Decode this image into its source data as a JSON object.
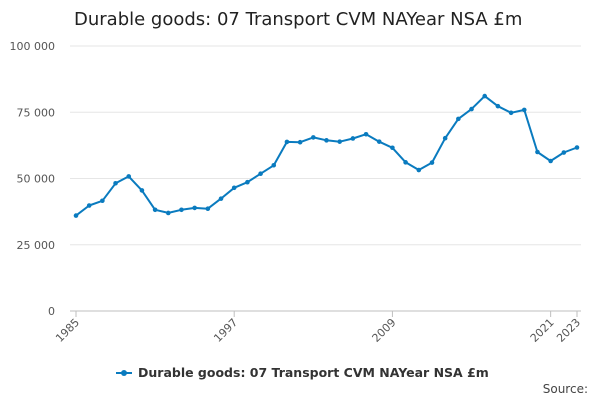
{
  "chart_data": {
    "type": "line",
    "title": "Durable goods: 07 Transport CVM NAYear NSA £m",
    "xlabel": "",
    "ylabel": "",
    "ylim": [
      0,
      100000
    ],
    "xlim": [
      1985,
      2023
    ],
    "y_ticks": [
      {
        "value": 0,
        "label": "0"
      },
      {
        "value": 25000,
        "label": "25 000"
      },
      {
        "value": 50000,
        "label": "50 000"
      },
      {
        "value": 75000,
        "label": "75 000"
      },
      {
        "value": 100000,
        "label": "100 000"
      }
    ],
    "x_ticks": [
      {
        "value": 1985,
        "label": "1985"
      },
      {
        "value": 1997,
        "label": "1997"
      },
      {
        "value": 2009,
        "label": "2009"
      },
      {
        "value": 2021,
        "label": "2021"
      },
      {
        "value": 2023,
        "label": "2023"
      }
    ],
    "grid": true,
    "legend_position": "bottom",
    "x": [
      1985,
      1986,
      1987,
      1988,
      1989,
      1990,
      1991,
      1992,
      1993,
      1994,
      1995,
      1996,
      1997,
      1998,
      1999,
      2000,
      2001,
      2002,
      2003,
      2004,
      2005,
      2006,
      2007,
      2008,
      2009,
      2010,
      2011,
      2012,
      2013,
      2014,
      2015,
      2016,
      2017,
      2018,
      2019,
      2020,
      2021,
      2022,
      2023
    ],
    "series": [
      {
        "name": "Durable goods: 07 Transport CVM NAYear NSA £m",
        "color": "#0a7bbf",
        "values": [
          36000,
          39800,
          41600,
          48200,
          50800,
          45500,
          38200,
          37000,
          38200,
          38900,
          38600,
          42400,
          46500,
          48600,
          51800,
          55000,
          63800,
          63700,
          65500,
          64400,
          63900,
          65100,
          66700,
          63900,
          61600,
          56100,
          53200,
          56000,
          65200,
          72500,
          76200,
          81100,
          77300,
          74800,
          75900,
          60000,
          56600,
          59800,
          61700
        ]
      }
    ]
  },
  "legend": {
    "label": "Durable goods: 07 Transport CVM NAYear NSA £m"
  },
  "source": {
    "label": "Source:"
  }
}
